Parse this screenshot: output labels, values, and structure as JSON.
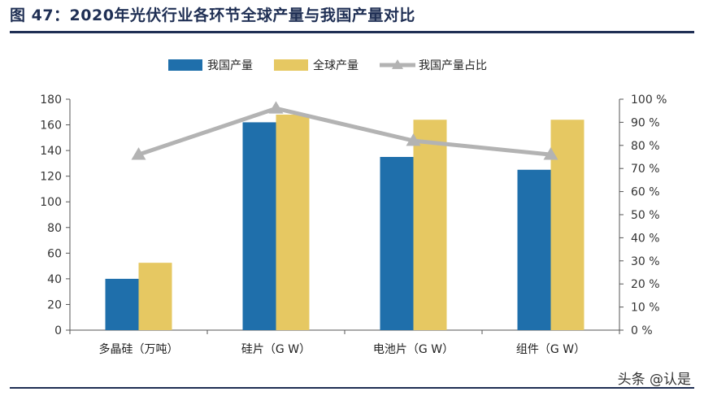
{
  "title": "图 47：2020年光伏行业各环节全球产量与我国产量对比",
  "watermark": "头条 @认是",
  "colors": {
    "domestic": "#1f6fab",
    "global": "#e6c862",
    "share": "#b3b3b3",
    "axis": "#555555"
  },
  "chart_data": {
    "type": "bar",
    "title": "",
    "categories": [
      "多晶硅（万吨）",
      "硅片（G W）",
      "电池片（G W）",
      "组件（G W）"
    ],
    "series": [
      {
        "name": "我国产量",
        "type": "bar",
        "axis": "left",
        "values": [
          40,
          162,
          135,
          125
        ]
      },
      {
        "name": "全球产量",
        "type": "bar",
        "axis": "left",
        "values": [
          52.5,
          168,
          164,
          164
        ]
      },
      {
        "name": "我国产量占比",
        "type": "line",
        "axis": "right",
        "values": [
          76,
          96,
          82,
          76
        ]
      }
    ],
    "y_left": {
      "min": 0,
      "max": 180,
      "ticks": [
        "0",
        "20",
        "40",
        "60",
        "80",
        "100",
        "120",
        "140",
        "160",
        "180"
      ]
    },
    "y_right": {
      "min": 0,
      "max": 100,
      "ticks": [
        "0 %",
        "10 %",
        "20 %",
        "30 %",
        "40 %",
        "50 %",
        "60 %",
        "70 %",
        "80 %",
        "90 %",
        "100 %"
      ]
    },
    "grid": false,
    "legend": "top-center"
  }
}
